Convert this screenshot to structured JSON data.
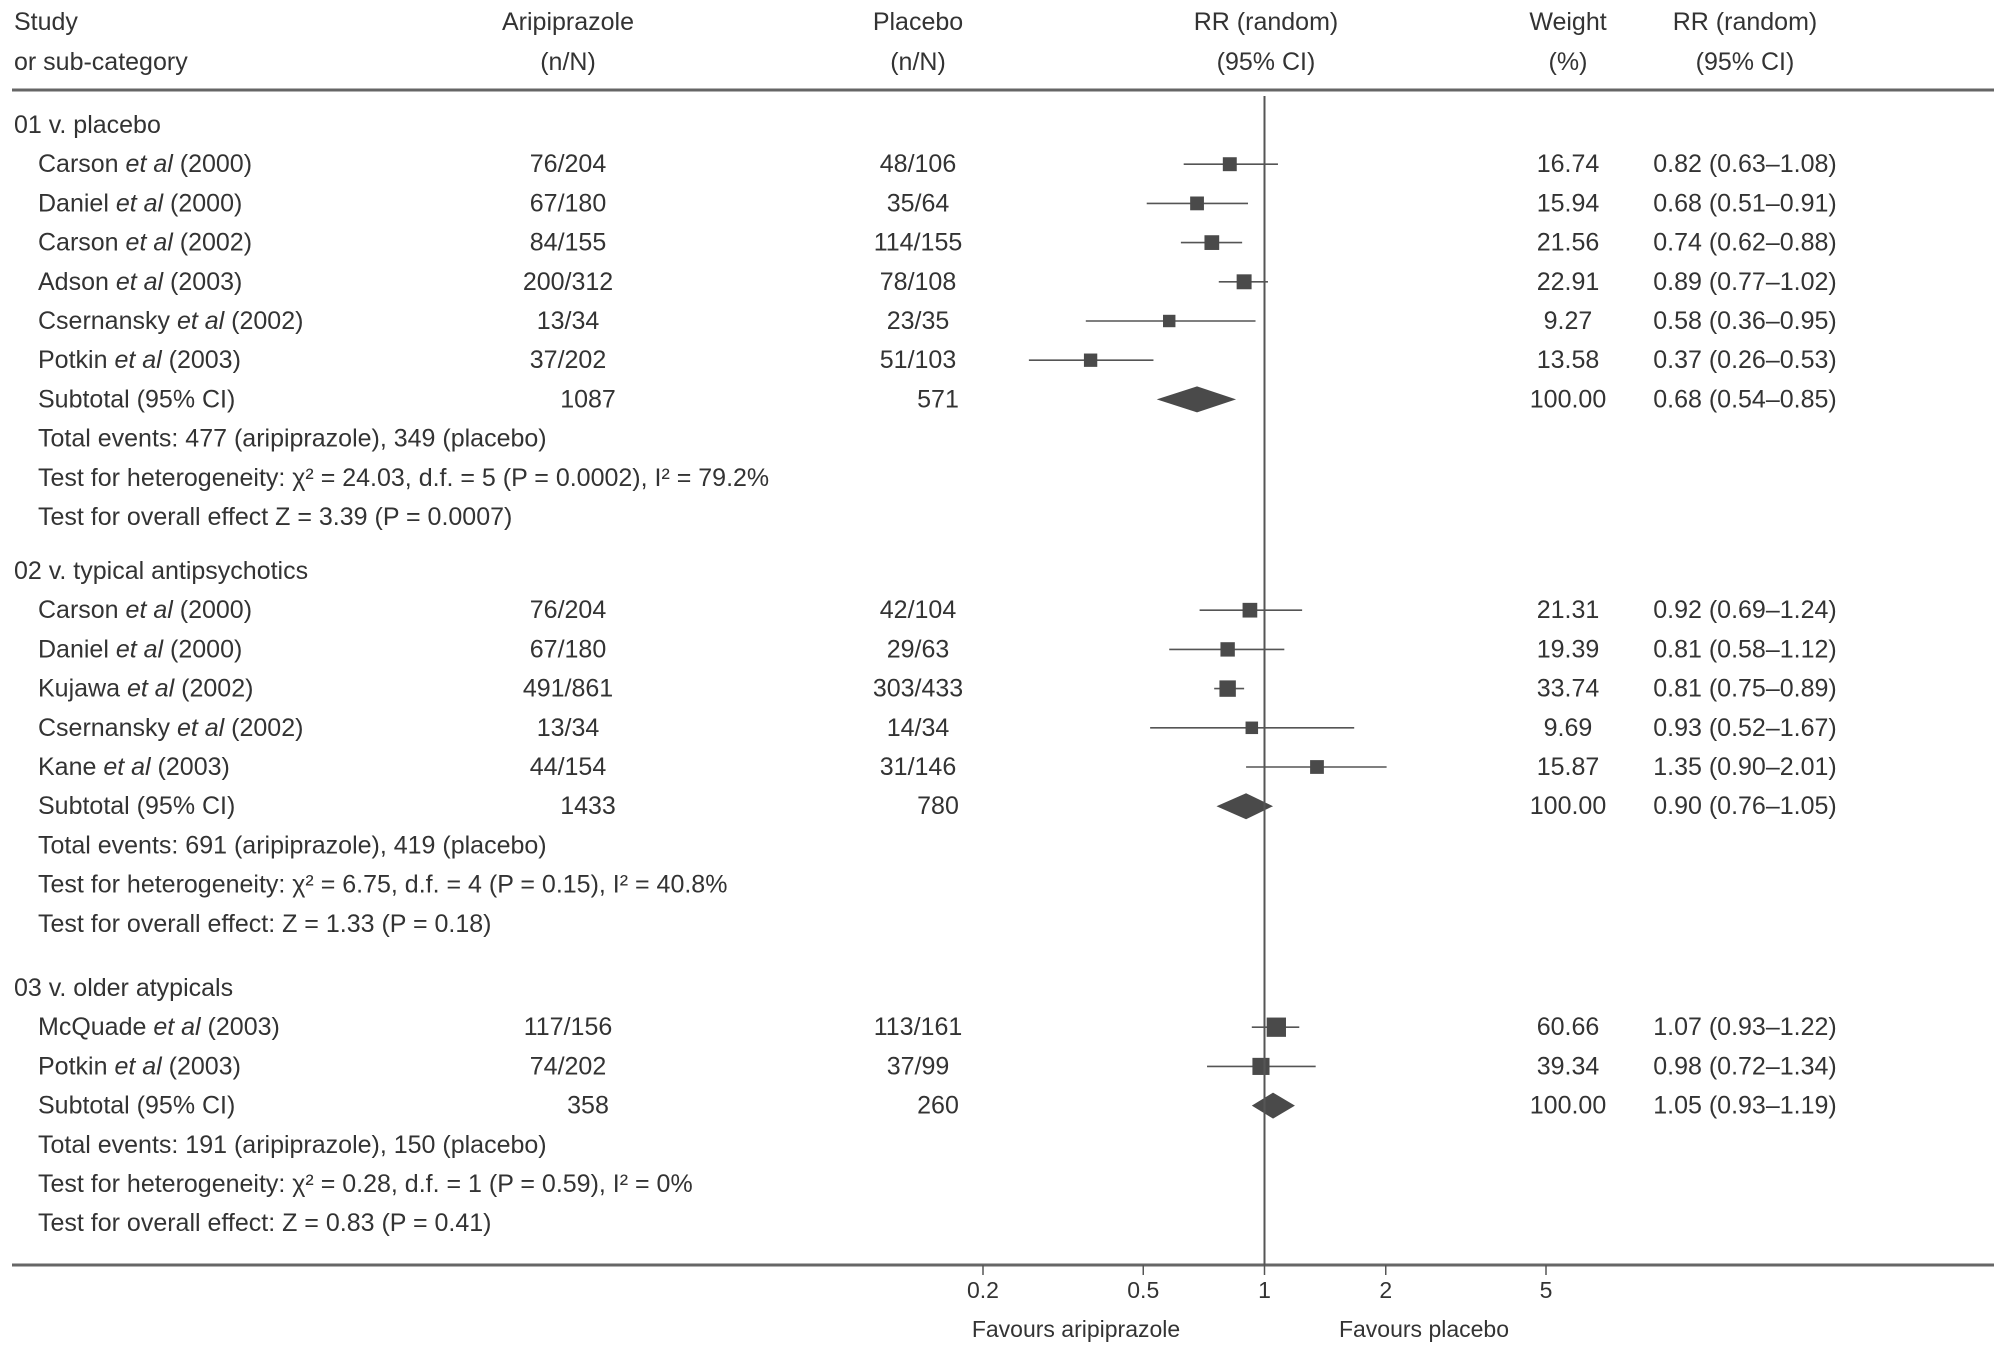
{
  "chart_data": {
    "type": "forest",
    "scale": "log",
    "headers": {
      "study": [
        "Study",
        "or sub-category"
      ],
      "treatment": [
        "Aripiprazole",
        "(n/N)"
      ],
      "control": [
        "Placebo",
        "(n/N)"
      ],
      "plot": [
        "RR (random)",
        "(95% CI)"
      ],
      "weight": [
        "Weight",
        "(%)"
      ],
      "estimate": [
        "RR (random)",
        "(95% CI)"
      ]
    },
    "x_ticks": [
      {
        "value": 0.2,
        "label": "0.2"
      },
      {
        "value": 0.5,
        "label": "0.5"
      },
      {
        "value": 1,
        "label": "1"
      },
      {
        "value": 2,
        "label": "2"
      },
      {
        "value": 5,
        "label": "5"
      }
    ],
    "x_range": [
      0.2,
      5
    ],
    "favours_left": "Favours aripiprazole",
    "favours_right": "Favours placebo",
    "groups": [
      {
        "title": "01 v. placebo",
        "studies": [
          {
            "author": "Carson",
            "etal": "et al",
            "year": "(2000)",
            "treatment": "76/204",
            "control": "48/106",
            "weight": "16.74",
            "ci_text": "0.82 (0.63–1.08)",
            "rr": 0.82,
            "lo": 0.63,
            "hi": 1.08,
            "w": 16.74
          },
          {
            "author": "Daniel",
            "etal": "et al",
            "year": "(2000)",
            "treatment": "67/180",
            "control": "35/64",
            "weight": "15.94",
            "ci_text": "0.68 (0.51–0.91)",
            "rr": 0.68,
            "lo": 0.51,
            "hi": 0.91,
            "w": 15.94
          },
          {
            "author": "Carson",
            "etal": "et al",
            "year": "(2002)",
            "treatment": "84/155",
            "control": "114/155",
            "weight": "21.56",
            "ci_text": "0.74 (0.62–0.88)",
            "rr": 0.74,
            "lo": 0.62,
            "hi": 0.88,
            "w": 21.56
          },
          {
            "author": "Adson",
            "etal": "et al",
            "year": "(2003)",
            "treatment": "200/312",
            "control": "78/108",
            "weight": "22.91",
            "ci_text": "0.89 (0.77–1.02)",
            "rr": 0.89,
            "lo": 0.77,
            "hi": 1.02,
            "w": 22.91
          },
          {
            "author": "Csernansky",
            "etal": "et al",
            "year": "(2002)",
            "treatment": "13/34",
            "control": "23/35",
            "weight": "9.27",
            "ci_text": "0.58 (0.36–0.95)",
            "rr": 0.58,
            "lo": 0.36,
            "hi": 0.95,
            "w": 9.27
          },
          {
            "author": "Potkin",
            "etal": "et al",
            "year": "(2003)",
            "treatment": "37/202",
            "control": "51/103",
            "weight": "13.58",
            "ci_text": "0.37 (0.26–0.53)",
            "rr": 0.37,
            "lo": 0.26,
            "hi": 0.53,
            "w": 13.58
          }
        ],
        "subtotal": {
          "label": "Subtotal (95% CI)",
          "treatment": "1087",
          "control": "571",
          "weight": "100.00",
          "ci_text": "0.68 (0.54–0.85)",
          "rr": 0.68,
          "lo": 0.54,
          "hi": 0.85
        },
        "notes": [
          "Total events: 477 (aripiprazole), 349 (placebo)",
          "Test for heterogeneity: χ² = 24.03, d.f. = 5 (P = 0.0002), I² = 79.2%",
          "Test for overall effect Z = 3.39 (P = 0.0007)"
        ]
      },
      {
        "title": "02 v. typical antipsychotics",
        "studies": [
          {
            "author": "Carson",
            "etal": "et al",
            "year": "(2000)",
            "treatment": "76/204",
            "control": "42/104",
            "weight": "21.31",
            "ci_text": "0.92 (0.69–1.24)",
            "rr": 0.92,
            "lo": 0.69,
            "hi": 1.24,
            "w": 21.31
          },
          {
            "author": "Daniel",
            "etal": "et al",
            "year": "(2000)",
            "treatment": "67/180",
            "control": "29/63",
            "weight": "19.39",
            "ci_text": "0.81 (0.58–1.12)",
            "rr": 0.81,
            "lo": 0.58,
            "hi": 1.12,
            "w": 19.39
          },
          {
            "author": "Kujawa",
            "etal": "et al",
            "year": "(2002)",
            "treatment": "491/861",
            "control": "303/433",
            "weight": "33.74",
            "ci_text": "0.81 (0.75–0.89)",
            "rr": 0.81,
            "lo": 0.75,
            "hi": 0.89,
            "w": 33.74
          },
          {
            "author": "Csernansky",
            "etal": "et al",
            "year": "(2002)",
            "treatment": "13/34",
            "control": "14/34",
            "weight": "9.69",
            "ci_text": "0.93 (0.52–1.67)",
            "rr": 0.93,
            "lo": 0.52,
            "hi": 1.67,
            "w": 9.69
          },
          {
            "author": "Kane",
            "etal": "et al",
            "year": "(2003)",
            "treatment": "44/154",
            "control": "31/146",
            "weight": "15.87",
            "ci_text": "1.35 (0.90–2.01)",
            "rr": 1.35,
            "lo": 0.9,
            "hi": 2.01,
            "w": 15.87
          }
        ],
        "subtotal": {
          "label": "Subtotal (95% CI)",
          "treatment": "1433",
          "control": "780",
          "weight": "100.00",
          "ci_text": "0.90 (0.76–1.05)",
          "rr": 0.9,
          "lo": 0.76,
          "hi": 1.05
        },
        "notes": [
          "Total events: 691 (aripiprazole), 419 (placebo)",
          "Test for heterogeneity: χ² = 6.75, d.f. = 4 (P = 0.15), I² = 40.8%",
          "Test for overall effect: Z = 1.33 (P = 0.18)"
        ]
      },
      {
        "title": "03 v. older atypicals",
        "studies": [
          {
            "author": "McQuade",
            "etal": "et al",
            "year": "(2003)",
            "treatment": "117/156",
            "control": "113/161",
            "weight": "60.66",
            "ci_text": "1.07 (0.93–1.22)",
            "rr": 1.07,
            "lo": 0.93,
            "hi": 1.22,
            "w": 60.66
          },
          {
            "author": "Potkin",
            "etal": "et al",
            "year": "(2003)",
            "treatment": "74/202",
            "control": "37/99",
            "weight": "39.34",
            "ci_text": "0.98 (0.72–1.34)",
            "rr": 0.98,
            "lo": 0.72,
            "hi": 1.34,
            "w": 39.34
          }
        ],
        "subtotal": {
          "label": "Subtotal (95% CI)",
          "treatment": "358",
          "control": "260",
          "weight": "100.00",
          "ci_text": "1.05 (0.93–1.19)",
          "rr": 1.05,
          "lo": 0.93,
          "hi": 1.19
        },
        "notes": [
          "Total events: 191 (aripiprazole), 150 (placebo)",
          "Test for heterogeneity: χ² = 0.28, d.f. = 1 (P = 0.59), I² = 0%",
          "Test for overall effect: Z = 0.83 (P = 0.41)"
        ]
      }
    ]
  },
  "colors": {
    "text": "#333333",
    "marker": "#4a4a4a",
    "line": "#555555",
    "rule": "#666666"
  }
}
